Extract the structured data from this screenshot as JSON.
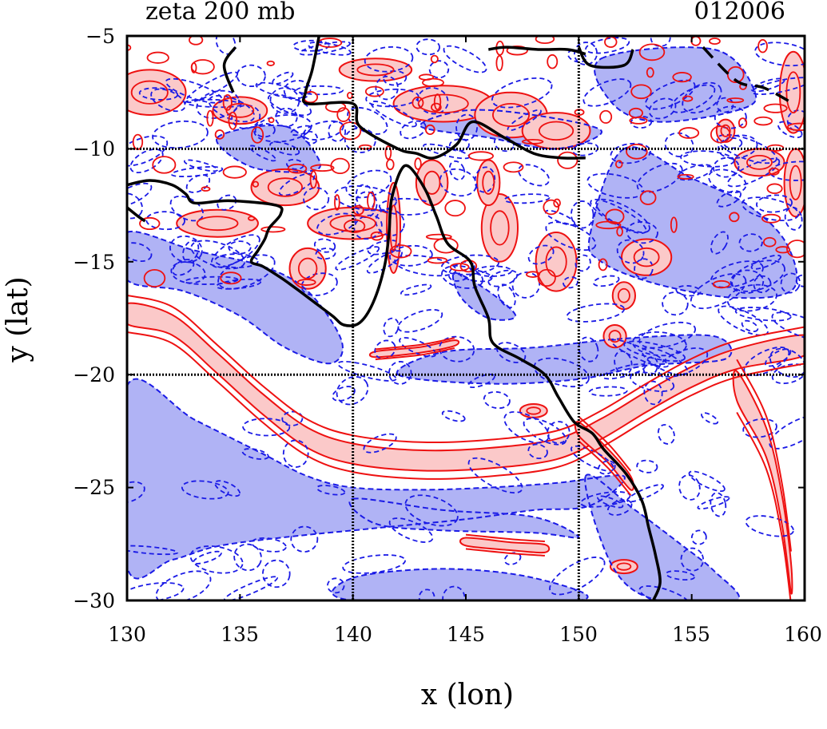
{
  "chart_data": {
    "type": "contour",
    "title": "zeta 200 mb",
    "timestamp": "012006",
    "xlabel": "x (lon)",
    "ylabel": "y (lat)",
    "xlim": [
      130,
      160
    ],
    "ylim": [
      -30,
      -5
    ],
    "xticks": [
      130,
      135,
      140,
      145,
      150,
      155,
      160
    ],
    "yticks": [
      -5,
      -10,
      -15,
      -20,
      -25,
      -30
    ],
    "xtick_labels": [
      "130",
      "135",
      "140",
      "145",
      "150",
      "155",
      "160"
    ],
    "ytick_labels": [
      "−5",
      "−10",
      "−15",
      "−20",
      "−25",
      "−30"
    ],
    "grid": {
      "x": [
        140,
        150
      ],
      "y": [
        -10,
        -20
      ]
    },
    "colors": {
      "positive_line": "#ee1111",
      "positive_fill": "#fbc9c9",
      "negative_line": "#1a1ae6",
      "negative_fill": "#b0b3f5",
      "coastline": "#000000"
    },
    "positive_bands": [
      {
        "name": "southern-arc",
        "points": [
          [
            130,
            -17.3
          ],
          [
            132,
            -17.8
          ],
          [
            134,
            -19.5
          ],
          [
            136,
            -21.3
          ],
          [
            138,
            -22.8
          ],
          [
            140,
            -23.5
          ],
          [
            143,
            -23.8
          ],
          [
            146,
            -23.7
          ],
          [
            149,
            -23.3
          ],
          [
            151,
            -22.4
          ],
          [
            153,
            -21.2
          ],
          [
            155,
            -20.1
          ],
          [
            157,
            -19.3
          ],
          [
            160,
            -18.7
          ]
        ],
        "width_deg": 0.9
      },
      {
        "name": "eastern-lobe",
        "points": [
          [
            157,
            -20.5
          ],
          [
            158.3,
            -23
          ],
          [
            159,
            -26
          ],
          [
            159.4,
            -29
          ]
        ],
        "width_deg": 1.3
      },
      {
        "name": "coast-south-ridge",
        "points": [
          [
            150,
            -22.4
          ],
          [
            151.3,
            -23.6
          ],
          [
            152.3,
            -24.8
          ]
        ],
        "width_deg": 0.6
      },
      {
        "name": "lower-strip",
        "points": [
          [
            145,
            -27.4
          ],
          [
            147,
            -27.6
          ],
          [
            148.5,
            -27.7
          ]
        ],
        "width_deg": 0.35
      },
      {
        "name": "mid-strip",
        "points": [
          [
            141,
            -19.1
          ],
          [
            143,
            -18.9
          ],
          [
            144.5,
            -18.6
          ]
        ],
        "width_deg": 0.25
      }
    ],
    "positive_blobs": [
      [
        131,
        -7.5,
        1.6,
        1
      ],
      [
        135,
        -8.3,
        1.2,
        0.6
      ],
      [
        137,
        -11.7,
        1.5,
        0.8
      ],
      [
        140,
        -13.3,
        2,
        0.7
      ],
      [
        144,
        -8,
        2.2,
        0.8
      ],
      [
        147,
        -8.5,
        1.6,
        1
      ],
      [
        149,
        -9.2,
        1.5,
        0.8
      ],
      [
        146.5,
        -13.5,
        0.8,
        1.5
      ],
      [
        149,
        -15,
        0.9,
        1.3
      ],
      [
        153,
        -14.8,
        1.1,
        0.8
      ],
      [
        158,
        -10.6,
        1.1,
        0.6
      ],
      [
        159.5,
        -7.5,
        0.6,
        1.8
      ],
      [
        159.6,
        -11.5,
        0.5,
        1.5
      ],
      [
        146,
        -11.5,
        0.5,
        1
      ],
      [
        143.5,
        -11.5,
        0.7,
        1
      ],
      [
        134,
        -13.3,
        1.8,
        0.6
      ],
      [
        138,
        -15.3,
        0.8,
        0.9
      ],
      [
        148,
        -21.6,
        0.6,
        0.3
      ],
      [
        152,
        -28.5,
        0.6,
        0.3
      ],
      [
        156.5,
        -9.2,
        0.4,
        0.5
      ],
      [
        141,
        -6.5,
        1.6,
        0.5
      ],
      [
        151.6,
        -18.3,
        0.5,
        0.5
      ],
      [
        152,
        -16.5,
        0.5,
        0.6
      ],
      [
        141.8,
        -13.5,
        0.3,
        2
      ]
    ],
    "negative_regions": [
      [
        [
          130,
          -20.5
        ],
        [
          133,
          -22
        ],
        [
          136,
          -23.5
        ],
        [
          138,
          -24.5
        ],
        [
          140,
          -25
        ],
        [
          143,
          -25.1
        ],
        [
          146,
          -25
        ],
        [
          149,
          -24.8
        ],
        [
          152,
          -24.5
        ],
        [
          150.5,
          -25.8
        ],
        [
          148,
          -26
        ],
        [
          145,
          -26.4
        ],
        [
          141,
          -26.8
        ],
        [
          137,
          -27.2
        ],
        [
          134,
          -27.6
        ],
        [
          132,
          -28.2
        ],
        [
          130,
          -28.5
        ]
      ],
      [
        [
          130,
          -13.7
        ],
        [
          133,
          -14.5
        ],
        [
          136,
          -15.2
        ],
        [
          138,
          -16.3
        ],
        [
          139.5,
          -18.5
        ],
        [
          139,
          -19.5
        ],
        [
          137,
          -18.8
        ],
        [
          135,
          -17.4
        ],
        [
          132.5,
          -16.3
        ],
        [
          130,
          -15.8
        ]
      ],
      [
        [
          134,
          -9.5
        ],
        [
          137,
          -9
        ],
        [
          138.5,
          -10.5
        ],
        [
          138,
          -11
        ],
        [
          135.5,
          -10.8
        ]
      ],
      [
        [
          143,
          -9
        ],
        [
          146,
          -9.5
        ],
        [
          149,
          -10
        ],
        [
          151,
          -9.2
        ],
        [
          148,
          -8.5
        ],
        [
          145,
          -8.3
        ]
      ],
      [
        [
          151,
          -6
        ],
        [
          156,
          -5.6
        ],
        [
          157.8,
          -7.5
        ],
        [
          157,
          -8.3
        ],
        [
          153.5,
          -8.8
        ],
        [
          151.5,
          -8
        ]
      ],
      [
        [
          152,
          -10
        ],
        [
          155,
          -11.3
        ],
        [
          157.5,
          -12.5
        ],
        [
          159.2,
          -14.2
        ],
        [
          159.5,
          -16.2
        ],
        [
          157,
          -16.6
        ],
        [
          153.5,
          -16
        ],
        [
          151,
          -15
        ],
        [
          150.5,
          -13.8
        ]
      ],
      [
        [
          142,
          -20
        ],
        [
          146,
          -20.4
        ],
        [
          150,
          -20.2
        ],
        [
          153,
          -19.6
        ],
        [
          156.5,
          -19.3
        ],
        [
          156,
          -18.3
        ],
        [
          152,
          -18.4
        ],
        [
          148,
          -18.8
        ],
        [
          144,
          -19
        ]
      ],
      [
        [
          150.3,
          -24.5
        ],
        [
          152.5,
          -26
        ],
        [
          154.5,
          -27.5
        ],
        [
          156,
          -28.7
        ],
        [
          157,
          -30
        ],
        [
          153.5,
          -30
        ],
        [
          151.5,
          -28.5
        ]
      ],
      [
        [
          140,
          -25.5
        ],
        [
          144,
          -26
        ],
        [
          148,
          -26.3
        ],
        [
          150,
          -27.2
        ],
        [
          148,
          -27
        ],
        [
          144,
          -26.9
        ],
        [
          141,
          -26.6
        ]
      ],
      [
        [
          140,
          -29
        ],
        [
          144,
          -28.6
        ],
        [
          148,
          -29
        ],
        [
          150,
          -30
        ],
        [
          140,
          -30
        ]
      ],
      [
        [
          144.5,
          -15.5
        ],
        [
          146,
          -16.3
        ],
        [
          147.2,
          -17.4
        ],
        [
          146,
          -17.5
        ],
        [
          144.8,
          -16.6
        ]
      ]
    ],
    "coastlines": [
      [
        [
          134.8,
          -5.5
        ],
        [
          134.3,
          -6.3
        ],
        [
          134.7,
          -7.5
        ]
      ],
      [
        [
          138.5,
          -5
        ],
        [
          138.2,
          -6.5
        ],
        [
          137.9,
          -7.5
        ],
        [
          138,
          -8
        ],
        [
          140,
          -8
        ],
        [
          140.3,
          -9
        ],
        [
          142,
          -10
        ],
        [
          142.8,
          -10.2
        ],
        [
          143.6,
          -10.4
        ],
        [
          144.6,
          -9.8
        ],
        [
          145.3,
          -8.8
        ],
        [
          146.7,
          -9.5
        ],
        [
          148,
          -10.2
        ],
        [
          149.2,
          -10.4
        ],
        [
          150.3,
          -10.4
        ]
      ],
      [
        [
          146,
          -5.6
        ],
        [
          146.8,
          -5.5
        ],
        [
          148.2,
          -5.6
        ],
        [
          149.5,
          -5.6
        ],
        [
          150.3,
          -5.8
        ]
      ],
      [
        [
          150,
          -5.5
        ],
        [
          150.5,
          -6.3
        ],
        [
          152,
          -6.3
        ],
        [
          152.4,
          -5.6
        ]
      ],
      [
        [
          130,
          -11.6
        ],
        [
          131,
          -11.4
        ],
        [
          132,
          -11.6
        ],
        [
          132.6,
          -12
        ],
        [
          133,
          -12.4
        ],
        [
          134.5,
          -12.3
        ],
        [
          136.6,
          -12.5
        ],
        [
          136.8,
          -12.9
        ],
        [
          136.3,
          -13.5
        ],
        [
          136.1,
          -14
        ],
        [
          135.8,
          -14.5
        ],
        [
          135.5,
          -15
        ],
        [
          136,
          -15.2
        ],
        [
          136.8,
          -15.7
        ],
        [
          137.5,
          -16.2
        ],
        [
          138.3,
          -16.8
        ],
        [
          139.1,
          -17.4
        ],
        [
          139.6,
          -17.8
        ],
        [
          140.3,
          -17.7
        ],
        [
          140.9,
          -16.8
        ],
        [
          141.4,
          -15.2
        ],
        [
          141.6,
          -13.7
        ],
        [
          141.7,
          -12.3
        ],
        [
          142.1,
          -11
        ],
        [
          142.5,
          -10.8
        ],
        [
          143.2,
          -11.8
        ],
        [
          143.7,
          -13
        ],
        [
          144.2,
          -14.2
        ],
        [
          145.2,
          -15
        ],
        [
          145.4,
          -16.1
        ],
        [
          146,
          -17.5
        ],
        [
          146.2,
          -18.6
        ],
        [
          147.4,
          -19.3
        ],
        [
          148.5,
          -20
        ],
        [
          149.1,
          -21
        ],
        [
          149.8,
          -22.1
        ],
        [
          150.6,
          -22.6
        ],
        [
          151.1,
          -23.3
        ],
        [
          152.1,
          -24.4
        ],
        [
          152.8,
          -25.6
        ],
        [
          153.1,
          -26.8
        ],
        [
          153.4,
          -28
        ],
        [
          153.6,
          -29.2
        ],
        [
          153.3,
          -30
        ]
      ],
      [
        [
          130,
          -12.6
        ],
        [
          130.5,
          -13
        ],
        [
          130.8,
          -13.2
        ]
      ]
    ],
    "dashed_coastlines": [
      [
        [
          155.5,
          -5.5
        ],
        [
          157,
          -7
        ],
        [
          158.2,
          -7.3
        ],
        [
          159.5,
          -8
        ]
      ]
    ]
  }
}
